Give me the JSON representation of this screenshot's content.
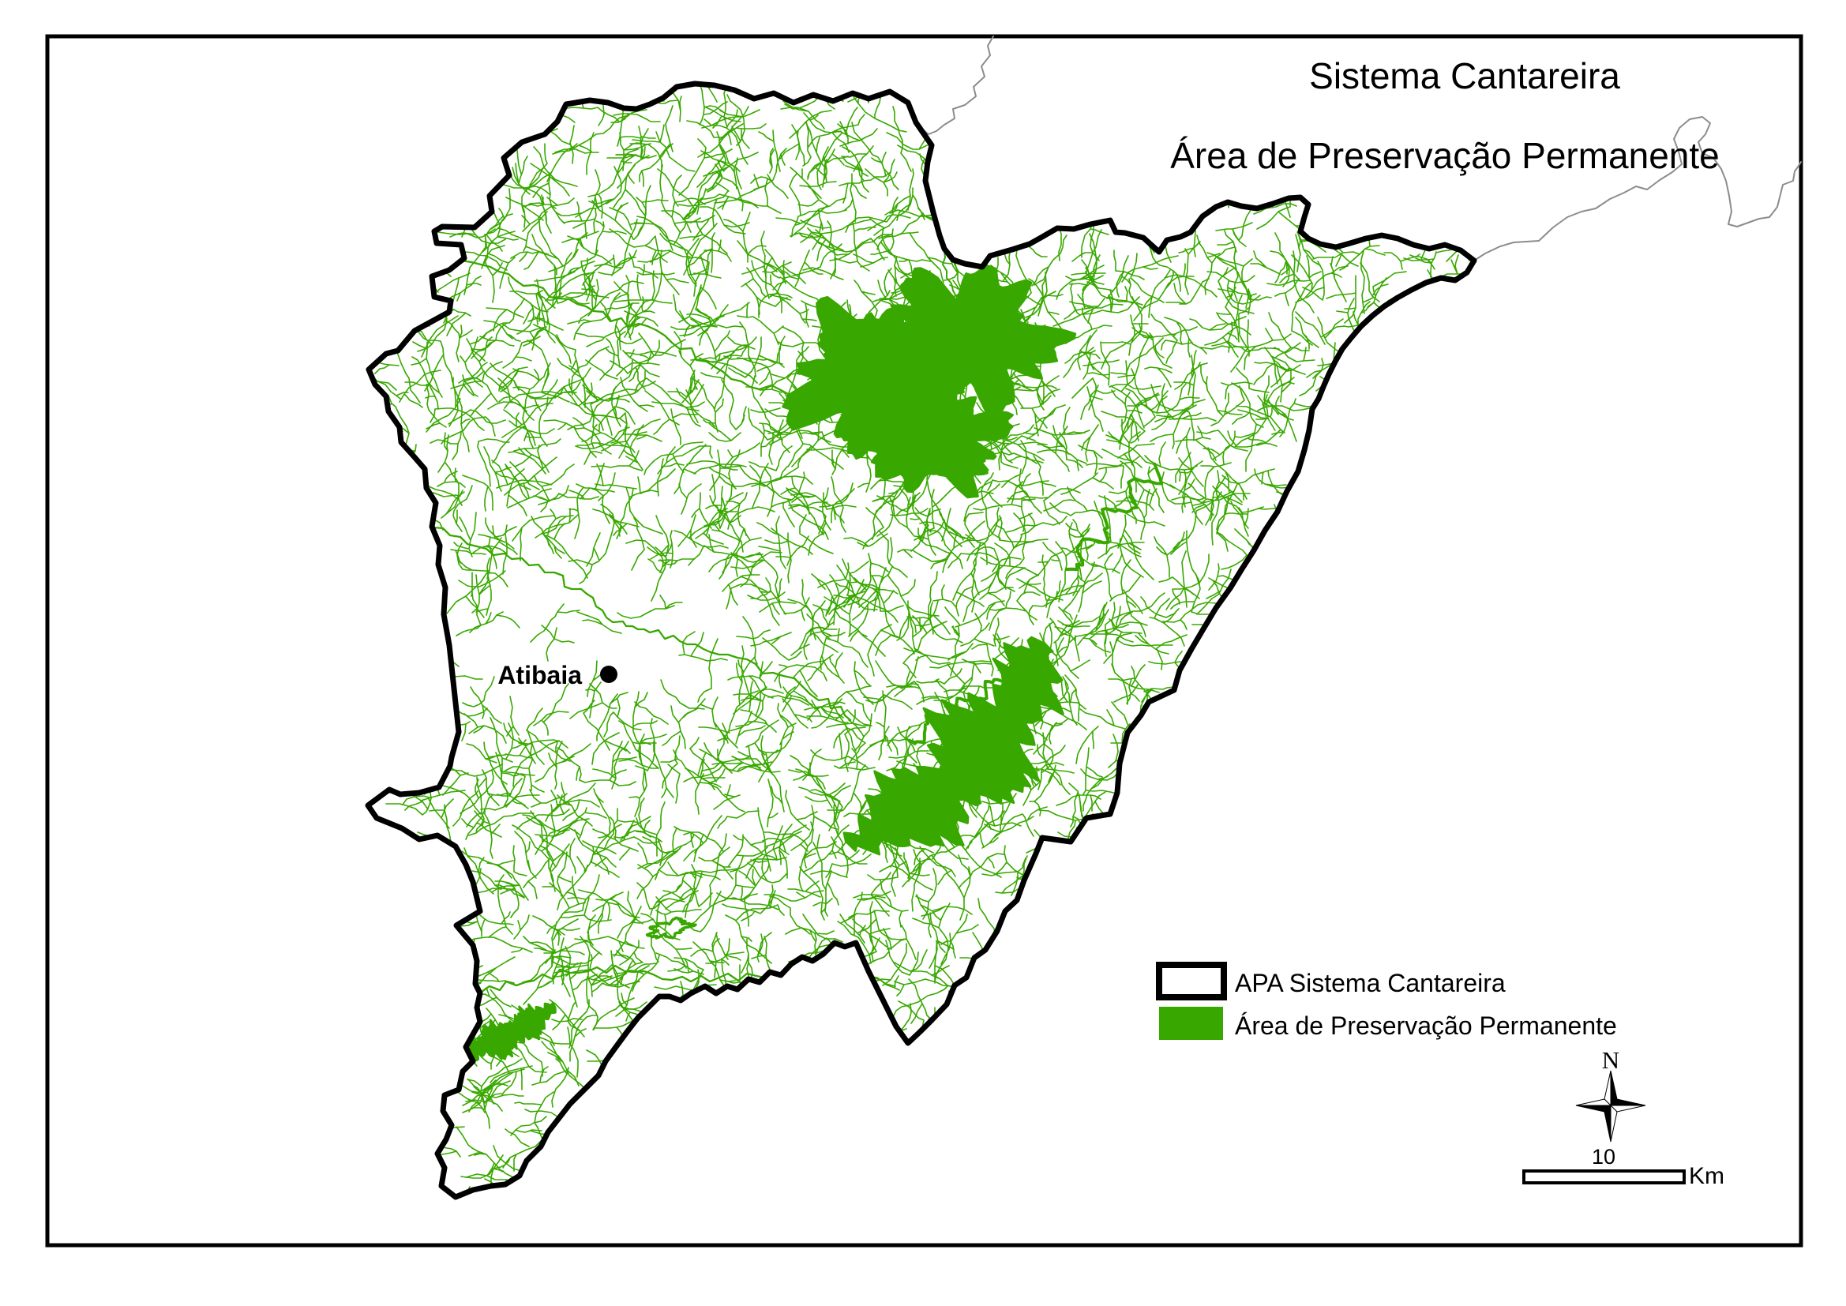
{
  "header": {
    "title": "Sistema Cantareira",
    "subtitle": "Área de Preservação Permanente"
  },
  "map": {
    "city_label": "Atibaia",
    "colors": {
      "preservation_green": "#38A800",
      "apa_outline_black": "#000000",
      "neighbor_boundary_gray": "#8C8C8C"
    }
  },
  "legend": {
    "items": [
      {
        "label": "APA Sistema Cantareira",
        "swatch": "black-outline-box"
      },
      {
        "label": "Área de Preservação Permanente",
        "swatch": "green-filled-box"
      }
    ]
  },
  "north_arrow": {
    "label": "N"
  },
  "scale_bar": {
    "value": "10",
    "unit": "Km"
  }
}
